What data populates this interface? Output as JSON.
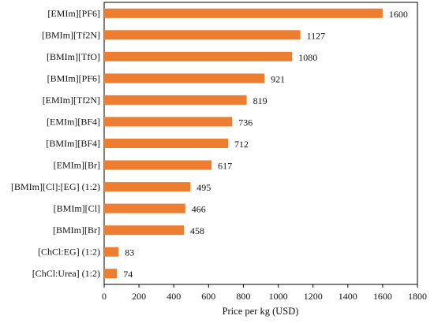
{
  "chart_data": {
    "type": "bar",
    "orientation": "horizontal",
    "categories": [
      "[EMIm][PF6]",
      "[BMIm][Tf2N]",
      "[BMIm][TfO]",
      "[BMIm][PF6]",
      "[EMIm][Tf2N]",
      "[EMIm][BF4]",
      "[BMIm][BF4]",
      "[EMIm][Br]",
      "[BMIm][Cl]:[EG] (1:2)",
      "[BMIm][Cl]",
      "[BMIm][Br]",
      "[ChCl:EG] (1:2)",
      "[ChCl:Urea] (1:2)"
    ],
    "values": [
      1600,
      1127,
      1080,
      921,
      819,
      736,
      712,
      617,
      495,
      466,
      458,
      83,
      74
    ],
    "value_labels": [
      "1600",
      "1127",
      "1080",
      "921",
      "819",
      "736",
      "712",
      "617",
      "495",
      "466",
      "458",
      "83",
      "74"
    ],
    "xlabel": "Price per kg (USD)",
    "xlim": [
      0,
      1800
    ],
    "xticks": [
      0,
      200,
      400,
      600,
      800,
      1000,
      1200,
      1400,
      1600,
      1800
    ],
    "xtick_labels": [
      "0",
      "200",
      "400",
      "600",
      "800",
      "1000",
      "1200",
      "1400",
      "1600",
      "1800"
    ],
    "grid": false,
    "bar_color": "#ed7d31"
  }
}
